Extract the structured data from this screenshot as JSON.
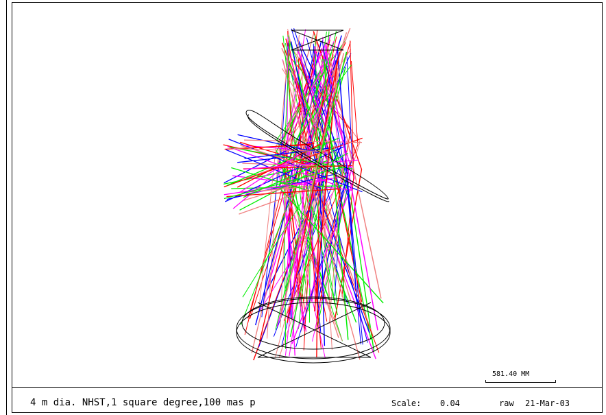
{
  "title_block": {
    "title": "4 m dia. NHST,1 square degree,100 mas p",
    "scale_label": "Scale:",
    "scale_value": "0.04",
    "raw_label": "raw",
    "date": "21-Mar-03"
  },
  "scale_bar": {
    "label": "581.40  MM"
  },
  "colors": {
    "background": "#ffffff",
    "outline": "#000000",
    "rays": [
      "#ff0000",
      "#0000ff",
      "#00ee00",
      "#ff00ff",
      "#f08080"
    ]
  }
}
